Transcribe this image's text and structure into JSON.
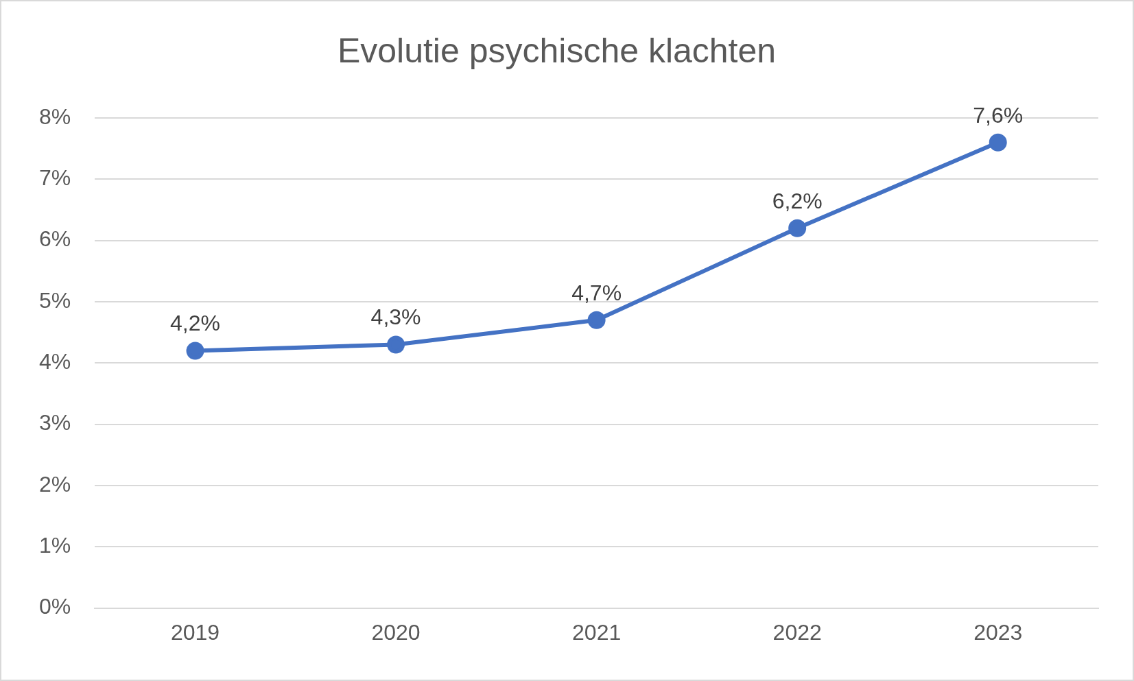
{
  "chart_data": {
    "type": "line",
    "title": "Evolutie psychische klachten",
    "categories": [
      "2019",
      "2020",
      "2021",
      "2022",
      "2023"
    ],
    "series": [
      {
        "color": "#4472c4",
        "values": [
          4.2,
          4.3,
          4.7,
          6.2,
          7.6
        ],
        "value_labels": [
          "4,2%",
          "4,3%",
          "4,7%",
          "6,2%",
          "7,6%"
        ]
      }
    ],
    "ylim": [
      0,
      8
    ],
    "yticks": [
      {
        "value": 0,
        "label": "0%"
      },
      {
        "value": 1,
        "label": "1%"
      },
      {
        "value": 2,
        "label": "2%"
      },
      {
        "value": 3,
        "label": "3%"
      },
      {
        "value": 4,
        "label": "4%"
      },
      {
        "value": 5,
        "label": "5%"
      },
      {
        "value": 6,
        "label": "6%"
      },
      {
        "value": 7,
        "label": "7%"
      },
      {
        "value": 8,
        "label": "8%"
      }
    ],
    "grid": "y",
    "legend": false,
    "marker": "circle",
    "line_style": "solid"
  }
}
